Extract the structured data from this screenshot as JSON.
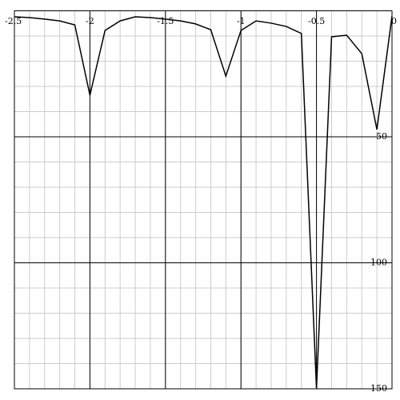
{
  "chart_data": {
    "type": "line",
    "x": [
      -2.5,
      -2.4,
      -2.3,
      -2.2,
      -2.1,
      -2.0,
      -1.9,
      -1.8,
      -1.7,
      -1.6,
      -1.5,
      -1.4,
      -1.3,
      -1.2,
      -1.1,
      -1.0,
      -0.9,
      -0.8,
      -0.7,
      -0.6,
      -0.5,
      -0.4,
      -0.3,
      -0.2,
      -0.1,
      0
    ],
    "series": [
      {
        "color": "#000000",
        "values": [
          2.4,
          2.7,
          3.3,
          4,
          5.6,
          33.5,
          7.8,
          4,
          2.4,
          2.7,
          3.3,
          4,
          5.2,
          7.5,
          25.9,
          7.8,
          4,
          4.9,
          6.2,
          9,
          150,
          10.3,
          9.7,
          17,
          47.1,
          2.1
        ]
      }
    ],
    "xlim": [
      -2.5,
      0
    ],
    "ylim": [
      0,
      150
    ],
    "y_inverted": true,
    "xticks": [
      -2.5,
      -2,
      -1.5,
      -1,
      -0.5,
      0
    ],
    "yticks": [
      50,
      100,
      150
    ],
    "grid": true
  }
}
